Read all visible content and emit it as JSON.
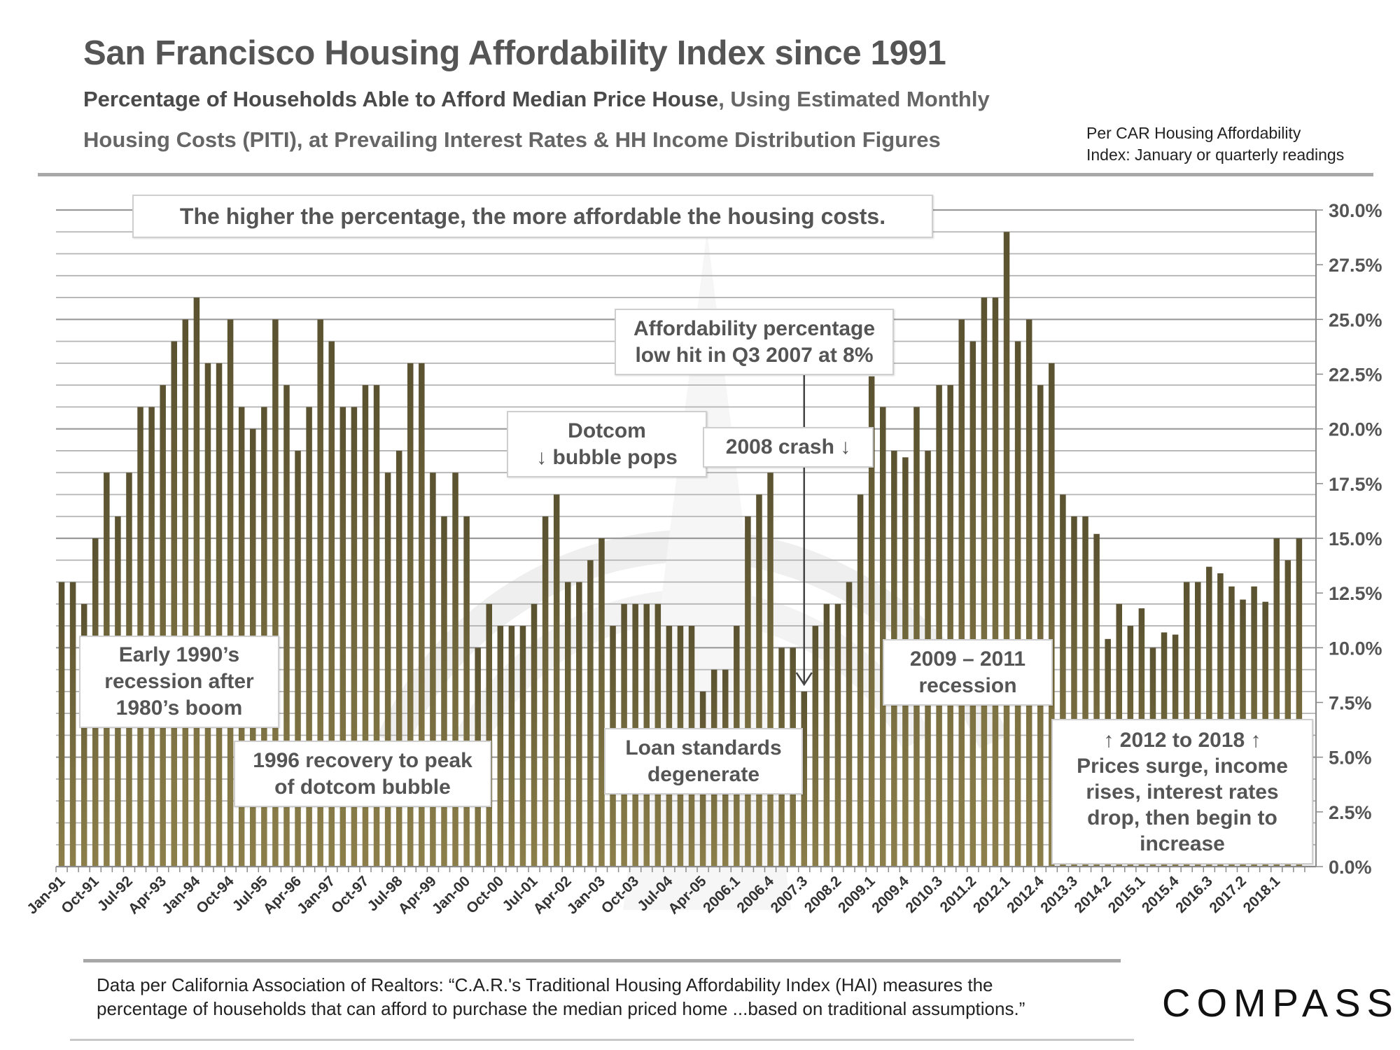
{
  "header": {
    "title": "San Francisco Housing Affordability Index since 1991",
    "subtitle_bold": "Percentage of Households Able to Afford Median Price House",
    "subtitle_rest": ", Using Estimated Monthly",
    "subtitle_line2": "Housing Costs (PITI), at Prevailing Interest Rates & HH Income Distribution Figures",
    "note_line1": "Per CAR Housing Affordability",
    "note_line2": "Index: January or quarterly readings"
  },
  "annotations": {
    "higher_note": "The higher the percentage, the more affordable the housing costs.",
    "low_point": "Affordability percentage\nlow hit in Q3 2007 at 8%",
    "dotcom": "Dotcom\n↓ bubble pops",
    "crash_2008": "2008 crash ↓",
    "early_90s": "Early 1990’s\nrecession after\n1980’s boom",
    "recovery_1996": "1996 recovery to peak\nof dotcom bubble",
    "loan_standards": "Loan standards\ndegenerate",
    "recession_2009": "2009 – 2011\nrecession",
    "period_2012": "↑   2012 to 2018   ↑\nPrices surge, income\nrises, interest rates\ndrop, then begin to\nincrease"
  },
  "footer": {
    "line1": "Data per California Association of Realtors: “C.A.R.'s Traditional Housing Affordability Index (HAI) measures the",
    "line2": "percentage of households that can afford to purchase the median priced home ...based on traditional assumptions.”",
    "logo": "COMPASS"
  },
  "colors": {
    "bar_top": "#5a5230",
    "bar_bottom": "#8c7f4a",
    "text": "#555555",
    "grid": "#b4b4b4"
  },
  "chart_data": {
    "type": "bar",
    "title": "San Francisco Housing Affordability Index since 1991",
    "xlabel": "",
    "ylabel": "Percentage of households able to afford median price house",
    "ylim": [
      0,
      30
    ],
    "y_ticks": [
      "0.0%",
      "2.5%",
      "5.0%",
      "7.5%",
      "10.0%",
      "12.5%",
      "15.0%",
      "17.5%",
      "20.0%",
      "22.5%",
      "25.0%",
      "27.5%",
      "30.0%"
    ],
    "y_axis_side": "right",
    "grid": true,
    "minor_grid_step": 1,
    "x_tick_every": 3,
    "x_tick_labels": [
      "Jan-91",
      "Oct-91",
      "Jul-92",
      "Apr-93",
      "Jan-94",
      "Oct-94",
      "Jul-95",
      "Apr-96",
      "Jan-97",
      "Oct-97",
      "Jul-98",
      "Apr-99",
      "Jan-00",
      "Oct-00",
      "Jul-01",
      "Apr-02",
      "Jan-03",
      "Oct-03",
      "Jul-04",
      "Apr-05",
      "2006.1",
      "2006.4",
      "2007.3",
      "2008.2",
      "2009.1",
      "2009.4",
      "2010.3",
      "2011.2",
      "2012.1",
      "2012.4",
      "2013.3",
      "2014.2",
      "2015.1",
      "2015.4",
      "2016.3",
      "2017.2",
      "2018.1"
    ],
    "categories": [
      "1991Q1",
      "1991Q2",
      "1991Q3",
      "1991Q4",
      "1992Q1",
      "1992Q2",
      "1992Q3",
      "1992Q4",
      "1993Q1",
      "1993Q2",
      "1993Q3",
      "1993Q4",
      "1994Q1",
      "1994Q2",
      "1994Q3",
      "1994Q4",
      "1995Q1",
      "1995Q2",
      "1995Q3",
      "1995Q4",
      "1996Q1",
      "1996Q2",
      "1996Q3",
      "1996Q4",
      "1997Q1",
      "1997Q2",
      "1997Q3",
      "1997Q4",
      "1998Q1",
      "1998Q2",
      "1998Q3",
      "1998Q4",
      "1999Q1",
      "1999Q2",
      "1999Q3",
      "1999Q4",
      "2000Q1",
      "2000Q2",
      "2000Q3",
      "2000Q4",
      "2001Q1",
      "2001Q2",
      "2001Q3",
      "2001Q4",
      "2002Q1",
      "2002Q2",
      "2002Q3",
      "2002Q4",
      "2003Q1",
      "2003Q2",
      "2003Q3",
      "2003Q4",
      "2004Q1",
      "2004Q2",
      "2004Q3",
      "2004Q4",
      "2005Q1",
      "2005Q2",
      "2005Q3",
      "2005Q4",
      "2006Q1",
      "2006Q2",
      "2006Q3",
      "2006Q4",
      "2007Q1",
      "2007Q2",
      "2007Q3",
      "2007Q4",
      "2008Q1",
      "2008Q2",
      "2008Q3",
      "2008Q4",
      "2009Q1",
      "2009Q2",
      "2009Q3",
      "2009Q4",
      "2010Q1",
      "2010Q2",
      "2010Q3",
      "2010Q4",
      "2011Q1",
      "2011Q2",
      "2011Q3",
      "2011Q4",
      "2012Q1",
      "2012Q2",
      "2012Q3",
      "2012Q4",
      "2013Q1",
      "2013Q2",
      "2013Q3",
      "2013Q4",
      "2014Q1",
      "2014Q2",
      "2014Q3",
      "2014Q4",
      "2015Q1",
      "2015Q2",
      "2015Q3",
      "2015Q4",
      "2016Q1",
      "2016Q2",
      "2016Q3",
      "2016Q4",
      "2017Q1",
      "2017Q2",
      "2017Q3",
      "2017Q4",
      "2018Q1",
      "2018Q2",
      "2018Q3"
    ],
    "values": [
      13,
      13,
      12,
      15,
      18,
      16,
      18,
      21,
      21,
      22,
      24,
      25,
      26,
      23,
      23,
      25,
      21,
      20,
      21,
      25,
      22,
      19,
      21,
      25,
      24,
      21,
      21,
      22,
      22,
      18,
      19,
      23,
      23,
      18,
      16,
      18,
      16,
      10,
      12,
      11,
      11,
      11,
      12,
      16,
      17,
      13,
      13,
      14,
      15,
      11,
      12,
      12,
      12,
      12,
      11,
      11,
      11,
      8,
      9,
      9,
      11,
      16,
      17,
      18,
      10,
      10,
      8,
      11,
      12,
      12,
      13,
      17,
      22.4,
      21,
      19,
      18.7,
      21,
      19,
      22,
      22,
      25,
      24,
      26,
      26,
      29,
      24,
      25,
      22,
      23,
      17,
      16,
      16,
      15.2,
      10.4,
      12,
      11,
      11.8,
      10,
      10.7,
      10.6,
      13,
      13,
      13.7,
      13.4,
      12.8,
      12.2,
      12.8,
      12.1,
      15,
      14,
      15
    ],
    "units": "percent",
    "legend": "none"
  }
}
